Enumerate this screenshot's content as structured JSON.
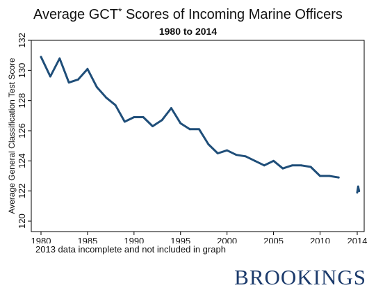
{
  "chart_data": {
    "type": "line",
    "title": "Average GCT",
    "title_sup": "*",
    "title_rest": " Scores of Incoming Marine Officers",
    "subtitle": "1980 to 2014",
    "xlabel": "",
    "ylabel": "Average General Classification Test Score",
    "xlim": [
      1980,
      2014
    ],
    "ylim": [
      120,
      132
    ],
    "x_ticks": [
      "1980",
      "1985",
      "1990",
      "1995",
      "2000",
      "2005",
      "2010",
      "2014"
    ],
    "y_ticks": [
      "120",
      "122",
      "124",
      "126",
      "128",
      "130",
      "132"
    ],
    "grid": false,
    "note": "2013 data incomplete and not included in graph",
    "line_color": "#1f4e79",
    "series": [
      {
        "x": [
          1980,
          1981,
          1982,
          1983,
          1984,
          1985,
          1986,
          1987,
          1988,
          1989,
          1990,
          1991,
          1992,
          1993,
          1994,
          1995,
          1996,
          1997,
          1998,
          1999,
          2000,
          2001,
          2002,
          2003,
          2004,
          2005,
          2006,
          2007,
          2008,
          2009,
          2010,
          2011,
          2012
        ],
        "values": [
          130.9,
          129.6,
          130.8,
          129.2,
          129.4,
          130.1,
          128.9,
          128.2,
          127.7,
          126.6,
          126.9,
          126.9,
          126.3,
          126.7,
          127.5,
          126.5,
          126.1,
          126.1,
          125.1,
          124.5,
          124.7,
          124.4,
          124.3,
          124.0,
          123.7,
          124.0,
          123.5,
          123.7,
          123.7,
          123.6,
          123.0,
          123.0,
          122.9
        ]
      },
      {
        "x": [
          2014,
          2014.1,
          2014.2
        ],
        "values": [
          121.9,
          122.3,
          122.0
        ]
      }
    ]
  },
  "brand": "BROOKINGS"
}
